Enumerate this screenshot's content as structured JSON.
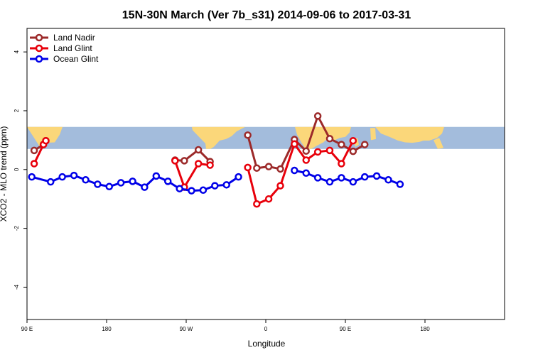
{
  "chart_data": {
    "type": "line",
    "title": "15N-30N March (Ver 7b_s31)   2014-09-06 to 2017-03-31",
    "xlabel": "Longitude",
    "ylabel": "XCO2 - MLO trend (ppm)",
    "xlim": [
      -270,
      -90
    ],
    "ylim": [
      -5.1,
      4.8
    ],
    "x_ticks": [
      {
        "value": -270,
        "label": "90 E"
      },
      {
        "value": -240,
        "label": "180"
      },
      {
        "value": -210,
        "label": "90 W"
      },
      {
        "value": -180,
        "label": "0"
      },
      {
        "value": -150,
        "label": "90 E"
      },
      {
        "value": -120,
        "label": "180"
      }
    ],
    "y_ticks": [
      {
        "value": 4,
        "label": "4"
      },
      {
        "value": 2,
        "label": "2"
      },
      {
        "value": 0,
        "label": "0"
      },
      {
        "value": -2,
        "label": "-2"
      },
      {
        "value": -4,
        "label": "-4"
      }
    ],
    "grid": false,
    "legend_position": "top-left",
    "background_map": {
      "lat_range": [
        15,
        30
      ],
      "y_range": [
        0.7,
        1.45
      ],
      "ocean_color": "#a3bcdc",
      "land_color": "#fbd77a"
    },
    "series": [
      {
        "name": "Land Nadir",
        "color": "#9c2a2a",
        "segments": [
          [
            [
              -267.3,
              0.65
            ],
            [
              -263.8,
              0.85
            ],
            [
              -262.9,
              0.98
            ]
          ],
          [
            [
              -214.2,
              0.32
            ],
            [
              -210.7,
              0.3
            ],
            [
              -205.4,
              0.67
            ],
            [
              -201.0,
              0.27
            ]
          ],
          [
            [
              -186.8,
              1.17
            ],
            [
              -183.4,
              0.05
            ],
            [
              -178.9,
              0.1
            ],
            [
              -174.5,
              0.02
            ],
            [
              -169.2,
              1.02
            ],
            [
              -164.8,
              0.63
            ],
            [
              -160.4,
              1.82
            ],
            [
              -155.9,
              1.05
            ],
            [
              -151.5,
              0.85
            ],
            [
              -147.1,
              0.62
            ],
            [
              -142.7,
              0.85
            ]
          ]
        ]
      },
      {
        "name": "Land Glint",
        "color": "#e8000b",
        "segments": [
          [
            [
              -267.3,
              0.2
            ],
            [
              -263.8,
              0.85
            ],
            [
              -262.9,
              0.98
            ]
          ],
          [
            [
              -214.2,
              0.3
            ],
            [
              -210.7,
              -0.6
            ],
            [
              -205.4,
              0.2
            ],
            [
              -201.0,
              0.15
            ]
          ],
          [
            [
              -186.8,
              0.07
            ],
            [
              -183.4,
              -1.17
            ],
            [
              -178.9,
              -1.0
            ],
            [
              -174.5,
              -0.55
            ],
            [
              -169.2,
              0.87
            ],
            [
              -164.8,
              0.32
            ],
            [
              -160.4,
              0.6
            ],
            [
              -155.9,
              0.65
            ],
            [
              -151.5,
              0.2
            ],
            [
              -147.1,
              0.98
            ]
          ]
        ]
      },
      {
        "name": "Ocean Glint",
        "color": "#0000e8",
        "segments": [
          [
            [
              -268.2,
              -0.25
            ],
            [
              -261.1,
              -0.42
            ],
            [
              -256.7,
              -0.25
            ],
            [
              -252.3,
              -0.2
            ],
            [
              -247.9,
              -0.35
            ],
            [
              -243.4,
              -0.5
            ],
            [
              -239.0,
              -0.58
            ],
            [
              -234.6,
              -0.45
            ],
            [
              -230.2,
              -0.4
            ],
            [
              -225.7,
              -0.6
            ],
            [
              -221.3,
              -0.22
            ],
            [
              -216.9,
              -0.4
            ],
            [
              -212.5,
              -0.65
            ],
            [
              -208.0,
              -0.72
            ],
            [
              -203.6,
              -0.7
            ],
            [
              -199.2,
              -0.55
            ],
            [
              -194.8,
              -0.52
            ],
            [
              -190.3,
              -0.25
            ]
          ],
          [
            [
              -169.2,
              -0.03
            ],
            [
              -164.8,
              -0.12
            ],
            [
              -160.4,
              -0.28
            ],
            [
              -155.9,
              -0.42
            ],
            [
              -151.5,
              -0.28
            ],
            [
              -147.1,
              -0.42
            ],
            [
              -142.7,
              -0.25
            ],
            [
              -138.2,
              -0.22
            ],
            [
              -133.8,
              -0.35
            ],
            [
              -129.4,
              -0.5
            ]
          ]
        ]
      }
    ]
  }
}
